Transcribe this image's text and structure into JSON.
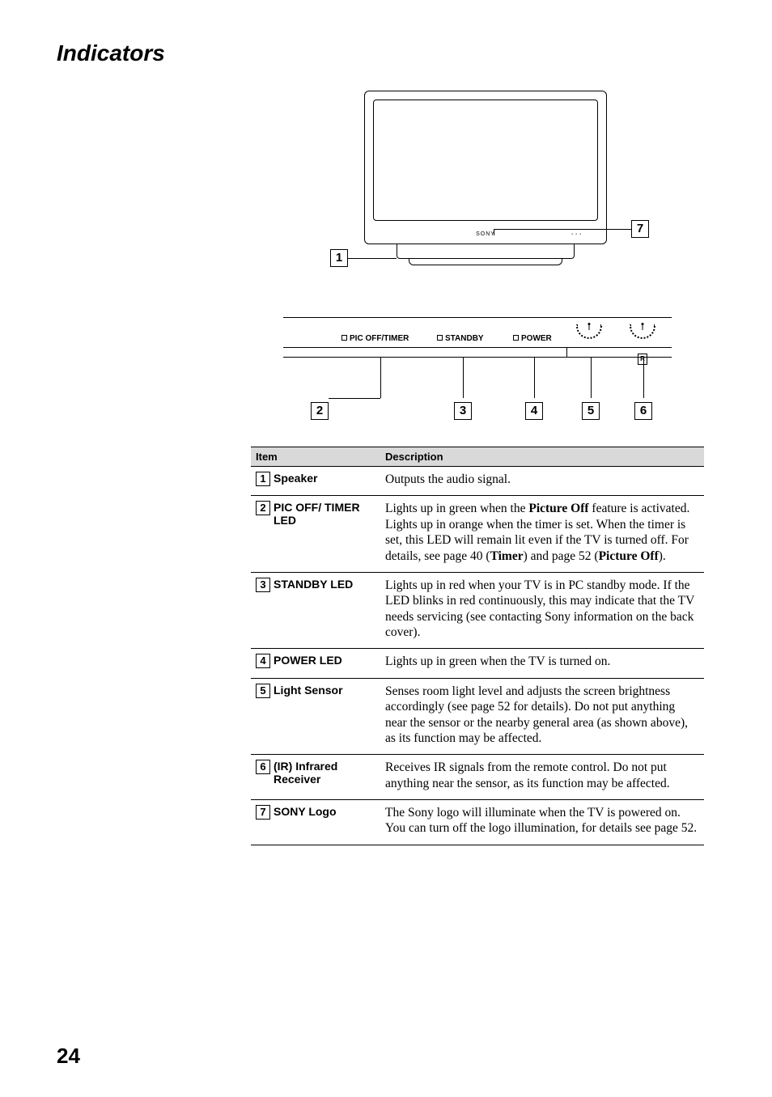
{
  "page": {
    "title": "Indicators",
    "number": "24"
  },
  "diagram": {
    "tv_brand": "SONY",
    "panel_labels": {
      "pic_off": "PIC OFF/TIMER",
      "standby": "STANDBY",
      "power": "POWER"
    },
    "ir_glyph": "R",
    "callouts": {
      "c1": "1",
      "c2": "2",
      "c3": "3",
      "c4": "4",
      "c5": "5",
      "c6": "6",
      "c7": "7"
    }
  },
  "table": {
    "headers": {
      "item": "Item",
      "desc": "Description"
    },
    "rows": [
      {
        "num": "1",
        "label": "Speaker",
        "desc_parts": [
          "Outputs the audio signal."
        ]
      },
      {
        "num": "2",
        "label": "PIC OFF/\nTIMER LED",
        "desc_parts": [
          "Lights up in green when the ",
          "Picture Off",
          " feature is activated. Lights up in orange when the timer is set. When the timer is set, this LED will remain lit even if the TV is turned off. For details, see page 40 (",
          "Timer",
          ") and page 52 (",
          "Picture Off",
          ")."
        ],
        "bold_idx": [
          1,
          3,
          5
        ]
      },
      {
        "num": "3",
        "label": "STANDBY LED",
        "desc_parts": [
          "Lights up in red when your TV is in PC standby mode. If the LED blinks in red continuously, this may indicate that the TV needs servicing (see contacting Sony information on the back cover)."
        ]
      },
      {
        "num": "4",
        "label": "POWER LED",
        "desc_parts": [
          "Lights up in green when the TV is turned on."
        ]
      },
      {
        "num": "5",
        "label": "Light Sensor",
        "desc_parts": [
          "Senses room light level and adjusts the screen brightness accordingly (see page 52 for details). Do not put anything near the sensor or the nearby general area (as shown above), as its function may be affected."
        ]
      },
      {
        "num": "6",
        "label": "(IR) Infrared Receiver",
        "desc_parts": [
          "Receives IR signals from the remote control. Do not put anything near the sensor, as its function may be affected."
        ]
      },
      {
        "num": "7",
        "label": "SONY Logo",
        "desc_parts": [
          "The Sony logo will illuminate when the TV is powered on. You can turn off the logo illumination, for details see page 52."
        ]
      }
    ]
  }
}
